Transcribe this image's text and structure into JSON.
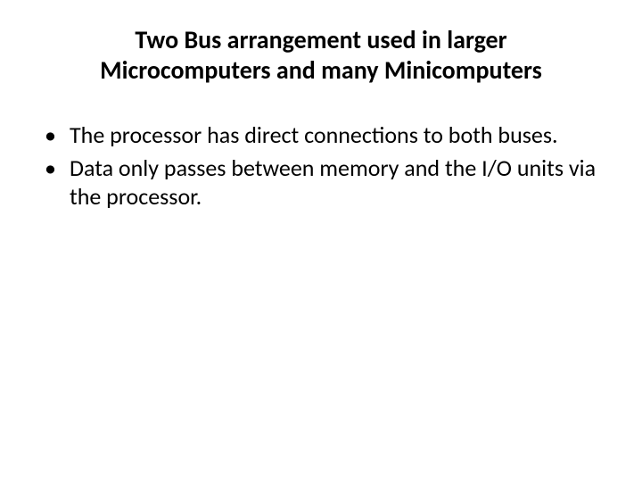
{
  "slide": {
    "title": "Two Bus arrangement used in larger Microcomputers and many Minicomputers",
    "bullets": [
      "The processor has direct connections to both buses.",
      "Data only passes between memory and the I/O units via the processor."
    ],
    "styling": {
      "background_color": "#ffffff",
      "title_color": "#000000",
      "title_fontsize": 28,
      "title_fontweight": "bold",
      "title_align": "center",
      "body_color": "#000000",
      "body_fontsize": 26,
      "bullet_marker": "•",
      "font_family": "Calibri"
    }
  }
}
